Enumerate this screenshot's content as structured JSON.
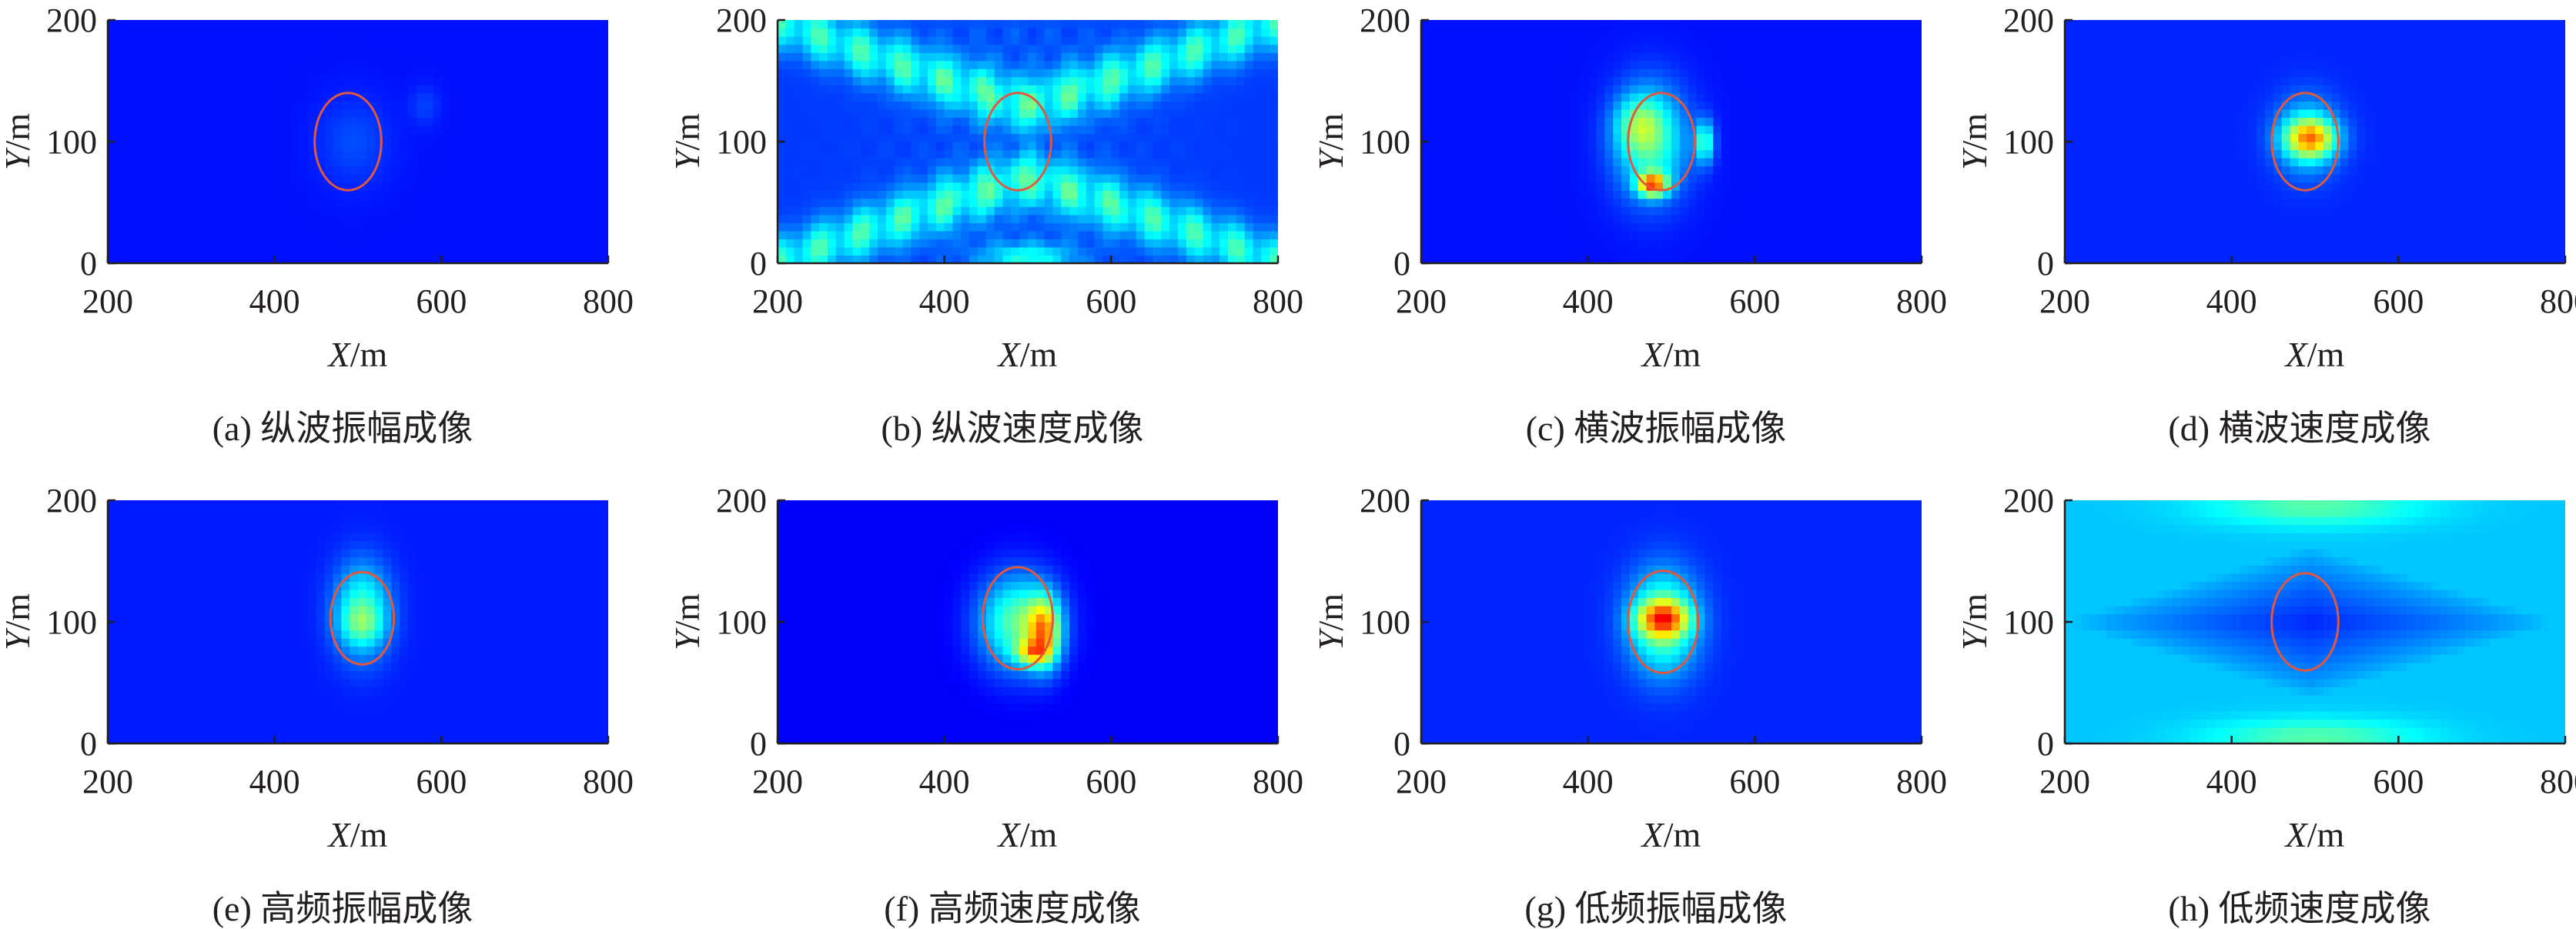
{
  "figure": {
    "axes": {
      "x_label_var": "X",
      "x_label_unit": "/m",
      "y_label_var": "Y",
      "y_label_unit": "/m",
      "xlim": [
        200,
        800
      ],
      "ylim": [
        0,
        200
      ],
      "x_ticks": [
        "200",
        "400",
        "600",
        "800"
      ],
      "y_ticks": [
        "0",
        "100",
        "200"
      ]
    },
    "colormap": "jet",
    "circle_color": "#e2583e",
    "panel_captions": [
      "(a) 纵波振幅成像",
      "(b) 纵波速度成像",
      "(c) 横波振幅成像",
      "(d) 横波速度成像",
      "(e) 高频振幅成像",
      "(f) 高频速度成像",
      "(g) 低频振幅成像",
      "(h) 低频速度成像"
    ]
  },
  "chart_data": [
    {
      "type": "heatmap",
      "caption": "(a) 纵波振幅成像",
      "xlim": [
        200,
        800
      ],
      "ylim": [
        0,
        200
      ],
      "background_level": 0.14,
      "circle": {
        "center": [
          488,
          100
        ],
        "radius": 40
      },
      "blobs": [
        {
          "x": 495,
          "y": 100,
          "rx": 55,
          "ry": 45,
          "level": 0.06
        },
        {
          "x": 580,
          "y": 130,
          "rx": 22,
          "ry": 20,
          "level": 0.05
        }
      ]
    },
    {
      "type": "heatmap",
      "caption": "(b) 纵波速度成像",
      "xlim": [
        200,
        800
      ],
      "ylim": [
        0,
        200
      ],
      "background_level": 0.18,
      "circle": {
        "center": [
          488,
          100
        ],
        "radius": 40
      },
      "pattern": "bands",
      "band_level": 0.28,
      "blobs": [
        {
          "x": 500,
          "y": 5,
          "rx": 70,
          "ry": 15,
          "level": 0.2
        }
      ]
    },
    {
      "type": "heatmap",
      "caption": "(c) 横波振幅成像",
      "xlim": [
        200,
        800
      ],
      "ylim": [
        0,
        200
      ],
      "background_level": 0.14,
      "circle": {
        "center": [
          488,
          100
        ],
        "radius": 40
      },
      "blobs": [
        {
          "x": 475,
          "y": 100,
          "rx": 55,
          "ry": 58,
          "level": 0.3
        },
        {
          "x": 460,
          "y": 115,
          "rx": 35,
          "ry": 28,
          "level": 0.18
        },
        {
          "x": 540,
          "y": 100,
          "rx": 14,
          "ry": 22,
          "level": 0.28
        },
        {
          "x": 478,
          "y": 65,
          "rx": 22,
          "ry": 12,
          "level": 0.55
        }
      ]
    },
    {
      "type": "heatmap",
      "caption": "(d) 横波速度成像",
      "xlim": [
        200,
        800
      ],
      "ylim": [
        0,
        200
      ],
      "background_level": 0.16,
      "circle": {
        "center": [
          488,
          100
        ],
        "radius": 40
      },
      "blobs": [
        {
          "x": 490,
          "y": 105,
          "rx": 48,
          "ry": 40,
          "level": 0.2
        },
        {
          "x": 495,
          "y": 103,
          "rx": 38,
          "ry": 20,
          "level": 0.42
        }
      ]
    },
    {
      "type": "heatmap",
      "caption": "(e) 高频振幅成像",
      "xlim": [
        200,
        800
      ],
      "ylim": [
        0,
        200
      ],
      "background_level": 0.15,
      "circle": {
        "center": [
          505,
          103
        ],
        "radius": 38
      },
      "blobs": [
        {
          "x": 505,
          "y": 110,
          "rx": 42,
          "ry": 48,
          "level": 0.28
        },
        {
          "x": 505,
          "y": 98,
          "rx": 32,
          "ry": 20,
          "level": 0.12
        }
      ]
    },
    {
      "type": "heatmap",
      "caption": "(f) 高频速度成像",
      "xlim": [
        200,
        800
      ],
      "ylim": [
        0,
        200
      ],
      "background_level": 0.12,
      "circle": {
        "center": [
          488,
          103
        ],
        "radius": 42
      },
      "blobs": [
        {
          "x": 488,
          "y": 100,
          "rx": 58,
          "ry": 48,
          "level": 0.35
        },
        {
          "x": 520,
          "y": 92,
          "rx": 25,
          "ry": 35,
          "level": 0.45
        },
        {
          "x": 505,
          "y": 75,
          "rx": 25,
          "ry": 12,
          "level": 0.3
        }
      ]
    },
    {
      "type": "heatmap",
      "caption": "(g) 低频振幅成像",
      "xlim": [
        200,
        800
      ],
      "ylim": [
        0,
        200
      ],
      "background_level": 0.16,
      "circle": {
        "center": [
          490,
          100
        ],
        "radius": 42
      },
      "blobs": [
        {
          "x": 490,
          "y": 100,
          "rx": 52,
          "ry": 52,
          "level": 0.34
        },
        {
          "x": 490,
          "y": 103,
          "rx": 38,
          "ry": 18,
          "level": 0.4
        }
      ]
    },
    {
      "type": "heatmap",
      "caption": "(h) 低频速度成像",
      "xlim": [
        200,
        800
      ],
      "ylim": [
        0,
        200
      ],
      "background_level": 0.32,
      "circle": {
        "center": [
          488,
          100
        ],
        "radius": 40
      },
      "pattern": "diamond",
      "blobs": [
        {
          "x": 500,
          "y": 195,
          "rx": 160,
          "ry": 20,
          "level": 0.14
        },
        {
          "x": 500,
          "y": 5,
          "rx": 160,
          "ry": 20,
          "level": 0.14
        }
      ]
    }
  ]
}
